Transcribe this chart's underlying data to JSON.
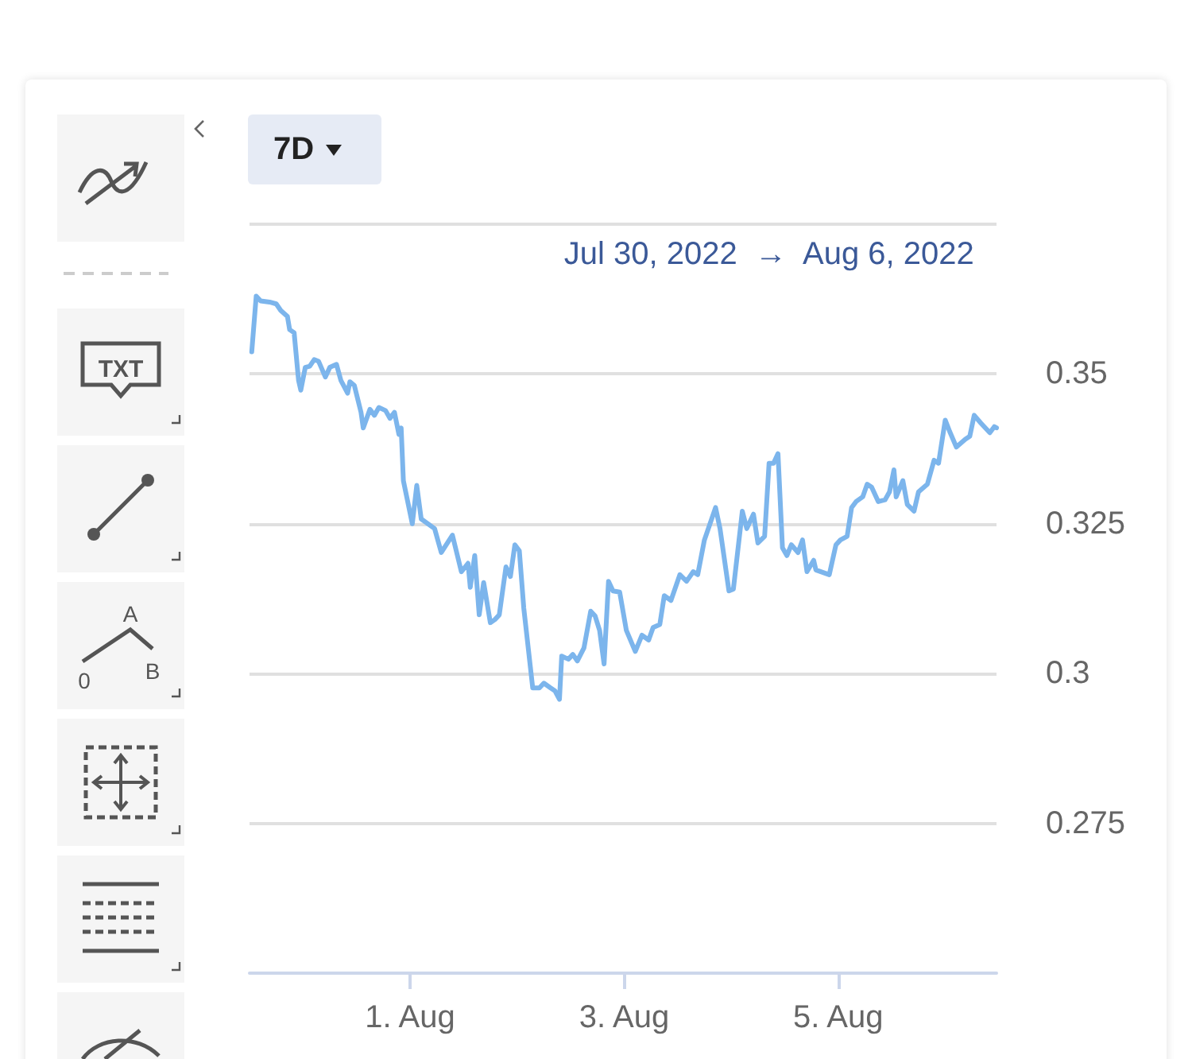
{
  "chart_data": {
    "type": "line",
    "title": "Jul 30, 2022  →  Aug 6, 2022",
    "annotations": [
      "7D",
      "TXT",
      "A",
      "0",
      "B"
    ],
    "x": [
      "2022-07-30T12:30",
      "2022-07-30T13:30",
      "2022-07-30T14:30",
      "2022-07-30T16:30",
      "2022-07-30T18:00",
      "2022-07-30T19:00",
      "2022-07-30T20:30",
      "2022-07-30T21:00",
      "2022-07-30T22:00",
      "2022-07-30T23:00",
      "2022-07-30T23:30",
      "2022-07-31T00:30",
      "2022-07-31T01:30",
      "2022-07-31T02:30",
      "2022-07-31T03:30",
      "2022-07-31T05:00",
      "2022-07-31T06:00",
      "2022-07-31T07:30",
      "2022-07-31T08:30",
      "2022-07-31T10:00",
      "2022-07-31T10:30",
      "2022-07-31T11:30",
      "2022-07-31T13:00",
      "2022-07-31T13:30",
      "2022-07-31T15:00",
      "2022-07-31T16:00",
      "2022-07-31T17:00",
      "2022-07-31T18:30",
      "2022-07-31T19:30",
      "2022-07-31T20:30",
      "2022-07-31T21:30",
      "2022-07-31T22:00",
      "2022-07-31T22:30",
      "2022-08-01T00:30",
      "2022-08-01T01:30",
      "2022-08-01T02:30",
      "2022-08-01T05:30",
      "2022-08-01T07:00",
      "2022-08-01T09:30",
      "2022-08-01T11:30",
      "2022-08-01T13:00",
      "2022-08-01T13:30",
      "2022-08-01T14:30",
      "2022-08-01T15:30",
      "2022-08-01T16:30",
      "2022-08-01T18:00",
      "2022-08-01T19:00",
      "2022-08-01T20:00",
      "2022-08-01T21:30",
      "2022-08-01T22:30",
      "2022-08-01T23:30",
      "2022-08-02T00:30",
      "2022-08-02T01:30",
      "2022-08-02T03:30",
      "2022-08-02T05:00",
      "2022-08-02T06:00",
      "2022-08-02T07:30",
      "2022-08-02T08:30",
      "2022-08-02T09:30",
      "2022-08-02T10:00",
      "2022-08-02T11:30",
      "2022-08-02T12:30",
      "2022-08-02T13:30",
      "2022-08-02T15:00",
      "2022-08-02T16:30",
      "2022-08-02T17:30",
      "2022-08-02T18:30",
      "2022-08-02T19:30",
      "2022-08-02T20:30",
      "2022-08-02T21:30",
      "2022-08-02T23:00",
      "2022-08-03T00:30",
      "2022-08-03T02:30",
      "2022-08-03T04:00",
      "2022-08-03T05:30",
      "2022-08-03T06:30",
      "2022-08-03T08:00",
      "2022-08-03T09:00",
      "2022-08-03T10:30",
      "2022-08-03T12:30",
      "2022-08-03T14:00",
      "2022-08-03T15:30",
      "2022-08-03T16:30",
      "2022-08-03T18:00",
      "2022-08-03T20:30",
      "2022-08-03T21:30",
      "2022-08-03T23:30",
      "2022-08-04T00:30",
      "2022-08-04T02:30",
      "2022-08-04T03:30",
      "2022-08-04T05:00",
      "2022-08-04T06:00",
      "2022-08-04T07:30",
      "2022-08-04T08:30",
      "2022-08-04T09:30",
      "2022-08-04T10:30",
      "2022-08-04T11:30",
      "2022-08-04T12:30",
      "2022-08-04T13:30",
      "2022-08-04T15:00",
      "2022-08-04T16:00",
      "2022-08-04T17:00",
      "2022-08-04T18:30",
      "2022-08-04T19:00",
      "2022-08-04T22:00",
      "2022-08-04T23:30",
      "2022-08-05T00:30",
      "2022-08-05T02:00",
      "2022-08-05T03:00",
      "2022-08-05T04:00",
      "2022-08-05T05:30",
      "2022-08-05T06:30",
      "2022-08-05T07:30",
      "2022-08-05T09:00",
      "2022-08-05T10:30",
      "2022-08-05T11:30",
      "2022-08-05T12:30",
      "2022-08-05T13:00",
      "2022-08-05T14:30",
      "2022-08-05T15:30",
      "2022-08-05T17:00",
      "2022-08-05T18:00",
      "2022-08-05T20:00",
      "2022-08-05T21:30",
      "2022-08-05T22:30",
      "2022-08-06T00:00",
      "2022-08-06T01:00",
      "2022-08-06T02:30",
      "2022-08-06T04:30",
      "2022-08-06T05:30",
      "2022-08-06T06:30",
      "2022-08-06T08:00",
      "2022-08-06T10:00",
      "2022-08-06T11:00",
      "2022-08-06T11:30"
    ],
    "series": [
      {
        "color": "#7cb5ec",
        "values": [
          0.3537,
          0.363,
          0.3622,
          0.362,
          0.3617,
          0.3606,
          0.3596,
          0.3574,
          0.3569,
          0.3489,
          0.3473,
          0.3511,
          0.3513,
          0.3524,
          0.3521,
          0.3495,
          0.3511,
          0.3516,
          0.3489,
          0.3468,
          0.3487,
          0.3481,
          0.3436,
          0.341,
          0.3441,
          0.3431,
          0.3444,
          0.3439,
          0.3426,
          0.3436,
          0.3399,
          0.341,
          0.3322,
          0.325,
          0.3314,
          0.3258,
          0.3242,
          0.3202,
          0.3231,
          0.317,
          0.3184,
          0.3144,
          0.3197,
          0.3098,
          0.3152,
          0.3085,
          0.309,
          0.3098,
          0.3178,
          0.3162,
          0.3215,
          0.3205,
          0.3109,
          0.2976,
          0.2976,
          0.2984,
          0.2976,
          0.2971,
          0.2957,
          0.3029,
          0.3024,
          0.3032,
          0.3021,
          0.3043,
          0.3104,
          0.3096,
          0.3072,
          0.3016,
          0.3154,
          0.3138,
          0.3136,
          0.3072,
          0.3037,
          0.3064,
          0.3056,
          0.3077,
          0.3082,
          0.313,
          0.3122,
          0.3165,
          0.3154,
          0.317,
          0.3165,
          0.3223,
          0.3277,
          0.3242,
          0.3138,
          0.3141,
          0.3271,
          0.3242,
          0.3266,
          0.3218,
          0.3229,
          0.3351,
          0.3351,
          0.3367,
          0.321,
          0.3197,
          0.3215,
          0.3202,
          0.3223,
          0.317,
          0.3189,
          0.3173,
          0.3165,
          0.3215,
          0.3223,
          0.3229,
          0.3277,
          0.3287,
          0.3295,
          0.3316,
          0.3311,
          0.3287,
          0.329,
          0.3303,
          0.334,
          0.3295,
          0.3322,
          0.3282,
          0.3271,
          0.3303,
          0.3316,
          0.3356,
          0.3351,
          0.3423,
          0.3404,
          0.3378,
          0.3391,
          0.3396,
          0.3431,
          0.3418,
          0.3402,
          0.3412,
          0.341
        ]
      }
    ],
    "xlim": [
      "2022-07-30T12:00",
      "2022-08-06T11:30"
    ],
    "xticks": [
      {
        "value": "2022-08-01",
        "label": "1. Aug"
      },
      {
        "value": "2022-08-03",
        "label": "3. Aug"
      },
      {
        "value": "2022-08-05",
        "label": "5. Aug"
      }
    ],
    "ylim": [
      0.25,
      0.375
    ],
    "yticks": [
      {
        "value": 0.25,
        "label": null
      },
      0.275,
      0.3,
      0.325,
      0.35,
      {
        "value": 0.375,
        "label": null
      }
    ],
    "grid": "y",
    "line_style": "solid"
  }
}
